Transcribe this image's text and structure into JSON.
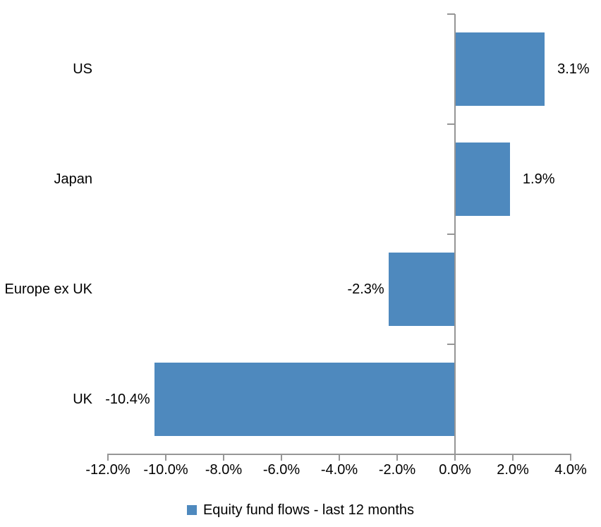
{
  "chart_data": {
    "type": "bar",
    "orientation": "horizontal",
    "title": "",
    "xlabel": "",
    "ylabel": "",
    "categories": [
      "US",
      "Japan",
      "Europe ex UK",
      "UK"
    ],
    "series": [
      {
        "name": "Equity fund flows - last 12 months",
        "values": [
          3.1,
          1.9,
          -2.3,
          -10.4
        ],
        "data_labels": [
          "3.1%",
          "1.9%",
          "-2.3%",
          "-10.4%"
        ]
      }
    ],
    "xlim": [
      -12,
      4
    ],
    "x_ticks": [
      {
        "value": -12,
        "label": "-12.0%"
      },
      {
        "value": -10,
        "label": "-10.0%"
      },
      {
        "value": -8,
        "label": "-8.0%"
      },
      {
        "value": -6,
        "label": "-6.0%"
      },
      {
        "value": -4,
        "label": "-4.0%"
      },
      {
        "value": -2,
        "label": "-2.0%"
      },
      {
        "value": 0,
        "label": "0.0%"
      },
      {
        "value": 2,
        "label": "2.0%"
      },
      {
        "value": 4,
        "label": "4.0%"
      }
    ],
    "grid": false,
    "legend": {
      "position": "bottom",
      "label": "Equity fund flows - last 12 months"
    },
    "colors": {
      "bar": "#4E89BE",
      "axis": "#969696",
      "text": "#000000",
      "background": "#ffffff"
    }
  }
}
